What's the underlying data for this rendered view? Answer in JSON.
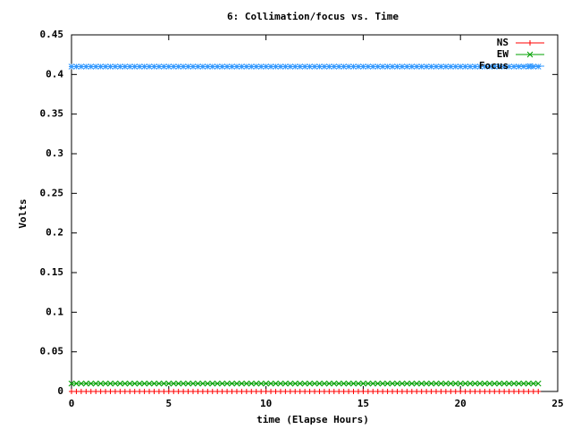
{
  "chart_data": {
    "type": "linespoints",
    "title": "6: Collimation/focus vs. Time",
    "xlabel": "time (Elapse Hours)",
    "ylabel": "Volts",
    "xlim": [
      0,
      25
    ],
    "xticks": [
      0,
      5,
      10,
      15,
      20,
      25
    ],
    "ylim": [
      0,
      0.45
    ],
    "yticks": [
      0,
      0.05,
      0.1,
      0.15,
      0.2,
      0.25,
      0.3,
      0.35,
      0.4,
      0.45
    ],
    "legend": "top-right",
    "x": [
      0,
      0.25,
      0.5,
      0.75,
      1,
      1.25,
      1.5,
      1.75,
      2,
      2.25,
      2.5,
      2.75,
      3,
      3.25,
      3.5,
      3.75,
      4,
      4.25,
      4.5,
      4.75,
      5,
      5.25,
      5.5,
      5.75,
      6,
      6.25,
      6.5,
      6.75,
      7,
      7.25,
      7.5,
      7.75,
      8,
      8.25,
      8.5,
      8.75,
      9,
      9.25,
      9.5,
      9.75,
      10,
      10.25,
      10.5,
      10.75,
      11,
      11.25,
      11.5,
      11.75,
      12,
      12.25,
      12.5,
      12.75,
      13,
      13.25,
      13.5,
      13.75,
      14,
      14.25,
      14.5,
      14.75,
      15,
      15.25,
      15.5,
      15.75,
      16,
      16.25,
      16.5,
      16.75,
      17,
      17.25,
      17.5,
      17.75,
      18,
      18.25,
      18.5,
      18.75,
      19,
      19.25,
      19.5,
      19.75,
      20,
      20.25,
      20.5,
      20.75,
      21,
      21.25,
      21.5,
      21.75,
      22,
      22.25,
      22.5,
      22.75,
      23,
      23.25,
      23.5,
      23.75,
      24
    ],
    "series": [
      {
        "name": "NS",
        "color": "#ff0000",
        "marker": "plus",
        "values": [
          0,
          0,
          0,
          0,
          0,
          0,
          0,
          0,
          0,
          0,
          0,
          0,
          0,
          0,
          0,
          0,
          0,
          0,
          0,
          0,
          0,
          0,
          0,
          0,
          0,
          0,
          0,
          0,
          0,
          0,
          0,
          0,
          0,
          0,
          0,
          0,
          0,
          0,
          0,
          0,
          0,
          0,
          0,
          0,
          0,
          0,
          0,
          0,
          0,
          0,
          0,
          0,
          0,
          0,
          0,
          0,
          0,
          0,
          0,
          0,
          0,
          0,
          0,
          0,
          0,
          0,
          0,
          0,
          0,
          0,
          0,
          0,
          0,
          0,
          0,
          0,
          0,
          0,
          0,
          0,
          0,
          0,
          0,
          0,
          0,
          0,
          0,
          0,
          0,
          0,
          0,
          0,
          0,
          0,
          0,
          0,
          0
        ]
      },
      {
        "name": "EW",
        "color": "#00a000",
        "marker": "cross",
        "values": [
          0.01,
          0.01,
          0.01,
          0.01,
          0.01,
          0.01,
          0.01,
          0.01,
          0.01,
          0.01,
          0.01,
          0.01,
          0.01,
          0.01,
          0.01,
          0.01,
          0.01,
          0.01,
          0.01,
          0.01,
          0.01,
          0.01,
          0.01,
          0.01,
          0.01,
          0.01,
          0.01,
          0.01,
          0.01,
          0.01,
          0.01,
          0.01,
          0.01,
          0.01,
          0.01,
          0.01,
          0.01,
          0.01,
          0.01,
          0.01,
          0.01,
          0.01,
          0.01,
          0.01,
          0.01,
          0.01,
          0.01,
          0.01,
          0.01,
          0.01,
          0.01,
          0.01,
          0.01,
          0.01,
          0.01,
          0.01,
          0.01,
          0.01,
          0.01,
          0.01,
          0.01,
          0.01,
          0.01,
          0.01,
          0.01,
          0.01,
          0.01,
          0.01,
          0.01,
          0.01,
          0.01,
          0.01,
          0.01,
          0.01,
          0.01,
          0.01,
          0.01,
          0.01,
          0.01,
          0.01,
          0.01,
          0.01,
          0.01,
          0.01,
          0.01,
          0.01,
          0.01,
          0.01,
          0.01,
          0.01,
          0.01,
          0.01,
          0.01,
          0.01,
          0.01,
          0.01,
          0.01
        ]
      },
      {
        "name": "Focus",
        "color": "#3399ff",
        "marker": "star",
        "values": [
          0.41,
          0.41,
          0.41,
          0.41,
          0.41,
          0.41,
          0.41,
          0.41,
          0.41,
          0.41,
          0.41,
          0.41,
          0.41,
          0.41,
          0.41,
          0.41,
          0.41,
          0.41,
          0.41,
          0.41,
          0.41,
          0.41,
          0.41,
          0.41,
          0.41,
          0.41,
          0.41,
          0.41,
          0.41,
          0.41,
          0.41,
          0.41,
          0.41,
          0.41,
          0.41,
          0.41,
          0.41,
          0.41,
          0.41,
          0.41,
          0.41,
          0.41,
          0.41,
          0.41,
          0.41,
          0.41,
          0.41,
          0.41,
          0.41,
          0.41,
          0.41,
          0.41,
          0.41,
          0.41,
          0.41,
          0.41,
          0.41,
          0.41,
          0.41,
          0.41,
          0.41,
          0.41,
          0.41,
          0.41,
          0.41,
          0.41,
          0.41,
          0.41,
          0.41,
          0.41,
          0.41,
          0.41,
          0.41,
          0.41,
          0.41,
          0.41,
          0.41,
          0.41,
          0.41,
          0.41,
          0.41,
          0.41,
          0.41,
          0.41,
          0.41,
          0.41,
          0.41,
          0.41,
          0.41,
          0.41,
          0.41,
          0.41,
          0.41,
          0.41,
          0.41,
          0.41,
          0.41
        ]
      }
    ]
  }
}
